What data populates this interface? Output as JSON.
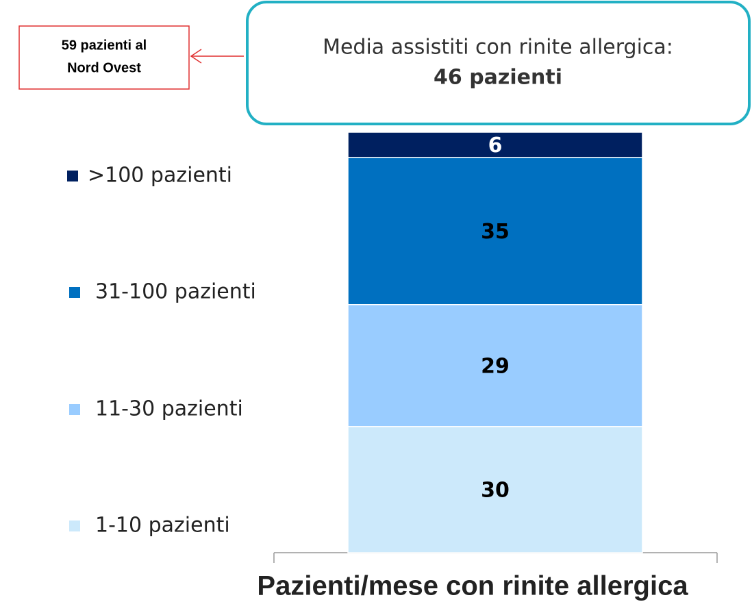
{
  "chart_data": {
    "type": "stacked_bar",
    "categories": [
      "Pazienti/mese con rinite allergica"
    ],
    "series": [
      {
        "name": "1-10 pazienti",
        "color": "#cce9fb",
        "label_color": "#000000",
        "values": [
          30
        ]
      },
      {
        "name": "11-30 pazienti",
        "color": "#99ccff",
        "label_color": "#000000",
        "values": [
          29
        ]
      },
      {
        "name": "31-100 pazienti",
        "color": "#0070c0",
        "label_color": "#000000",
        "values": [
          35
        ]
      },
      {
        "name": ">100 pazienti",
        "color": "#002060",
        "label_color": "#ffffff",
        "values": [
          6
        ]
      }
    ],
    "annotations": {
      "callout": [
        "Media assistiti con rinite allergica:",
        "46 pazienti"
      ],
      "note": [
        "59 pazienti al",
        "Nord Ovest"
      ]
    }
  }
}
